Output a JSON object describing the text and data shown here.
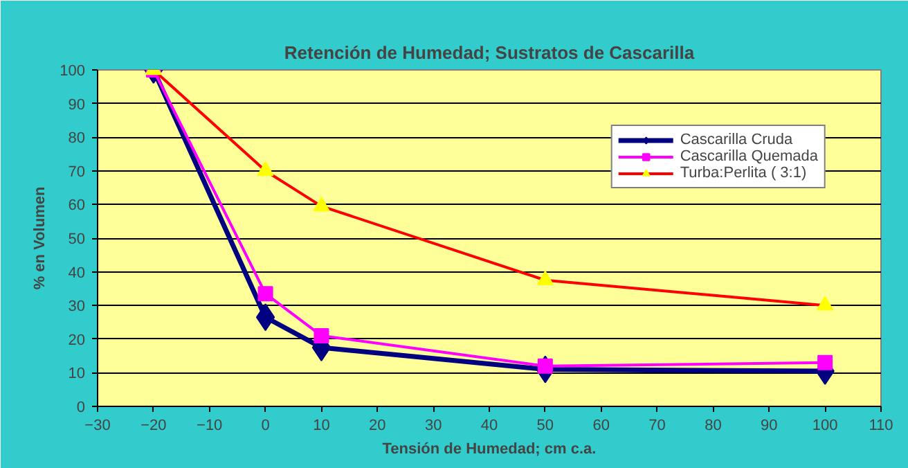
{
  "chart_data": {
    "type": "line",
    "title": "Retención de Humedad; Sustratos de Cascarilla",
    "xlabel": "Tensión de Humedad; cm c.a.",
    "ylabel": "% en Volumen",
    "x": [
      -20,
      0,
      10,
      50,
      100
    ],
    "series": [
      {
        "name": "Cascarilla Cruda",
        "color": "#000080",
        "marker": "diamond",
        "values": [
          100,
          26.5,
          17.5,
          11,
          10.5
        ]
      },
      {
        "name": "Cascarilla Quemada",
        "color": "#ff00ff",
        "marker": "square",
        "values": [
          100,
          33.5,
          21,
          12,
          13
        ]
      },
      {
        "name": "Turba:Perlita ( 3:1)",
        "color": "#ff0000",
        "colors": [
          "#ffff00",
          "#ffff00",
          "#ffff00",
          "#ffff00",
          "#ffff00"
        ],
        "marker": "triangle",
        "values": [
          100,
          70,
          59.5,
          37.5,
          30
        ]
      }
    ],
    "xlim": [
      -30,
      110
    ],
    "xticks": [
      -30,
      -20,
      -10,
      0,
      10,
      20,
      30,
      40,
      50,
      60,
      70,
      80,
      90,
      100,
      110
    ],
    "ylim": [
      0,
      100
    ],
    "yticks": [
      0,
      10,
      20,
      30,
      40,
      50,
      60,
      70,
      80,
      90,
      100
    ],
    "grid": "y",
    "legend": "top right",
    "line_style": "solid"
  }
}
